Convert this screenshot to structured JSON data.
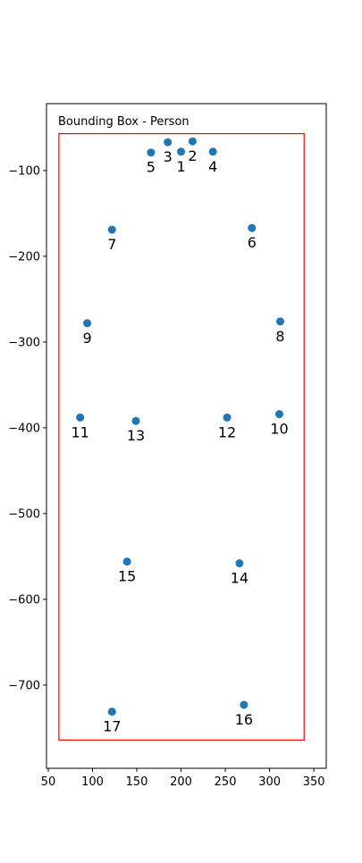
{
  "chart_data": {
    "type": "scatter",
    "title": "Bounding Box - Person",
    "xlabel": "",
    "ylabel": "",
    "xlim": [
      48,
      364
    ],
    "ylim": [
      -797,
      -22
    ],
    "xticks": [
      50,
      100,
      150,
      200,
      250,
      300,
      350
    ],
    "yticks": [
      -100,
      -200,
      -300,
      -400,
      -500,
      -600,
      -700
    ],
    "grid": false,
    "marker_color": "#1f77b4",
    "box_color": "#ff0000",
    "bounding_box": {
      "x0": 62,
      "x1": 339,
      "y0": -764,
      "y1": -57
    },
    "points": [
      {
        "label": "1",
        "x": 200,
        "y": -78
      },
      {
        "label": "2",
        "x": 213,
        "y": -66
      },
      {
        "label": "3",
        "x": 185,
        "y": -67
      },
      {
        "label": "4",
        "x": 236,
        "y": -78
      },
      {
        "label": "5",
        "x": 166,
        "y": -79
      },
      {
        "label": "6",
        "x": 280,
        "y": -167
      },
      {
        "label": "7",
        "x": 122,
        "y": -169
      },
      {
        "label": "8",
        "x": 312,
        "y": -276
      },
      {
        "label": "9",
        "x": 94,
        "y": -278
      },
      {
        "label": "10",
        "x": 311,
        "y": -384
      },
      {
        "label": "11",
        "x": 86,
        "y": -388
      },
      {
        "label": "12",
        "x": 252,
        "y": -388
      },
      {
        "label": "13",
        "x": 149,
        "y": -392
      },
      {
        "label": "14",
        "x": 266,
        "y": -558
      },
      {
        "label": "15",
        "x": 139,
        "y": -556
      },
      {
        "label": "16",
        "x": 271,
        "y": -723
      },
      {
        "label": "17",
        "x": 122,
        "y": -731
      }
    ]
  }
}
